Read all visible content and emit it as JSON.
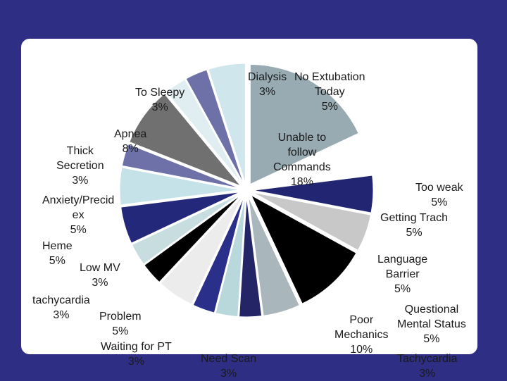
{
  "chart_data": {
    "type": "pie",
    "slices": [
      {
        "label": "Unable to\nfollow\nCommands",
        "value": 18,
        "display": "18%",
        "color": "#98aab2"
      },
      {
        "label": "Too weak",
        "value": 5,
        "display": "5%",
        "color": "#ffffff"
      },
      {
        "label": "Getting Trach",
        "value": 5,
        "display": "5%",
        "color": "#222672"
      },
      {
        "label": "Language\nBarrier",
        "value": 5,
        "display": "5%",
        "color": "#c8c8c8"
      },
      {
        "label": "Poor\nMechanics",
        "value": 10,
        "display": "10%",
        "color": "#000000"
      },
      {
        "label": "Questional\nMental Status",
        "value": 5,
        "display": "5%",
        "color": "#a9b6bb"
      },
      {
        "label": "Tachycardia",
        "value": 3,
        "display": "3%",
        "color": "#232566"
      },
      {
        "label": "Need Scan",
        "value": 3,
        "display": "3%",
        "color": "#b9d8dc"
      },
      {
        "label": "Waiting for PT",
        "value": 3,
        "display": "3%",
        "color": "#2a2f8a"
      },
      {
        "label": "Problem",
        "value": 5,
        "display": "5%",
        "color": "#ececec"
      },
      {
        "label": "tachycardia",
        "value": 3,
        "display": "3%",
        "color": "#000000"
      },
      {
        "label": "Low MV",
        "value": 3,
        "display": "3%",
        "color": "#c8dde0"
      },
      {
        "label": "Heme",
        "value": 5,
        "display": "5%",
        "color": "#23287a"
      },
      {
        "label": "Anxiety/Precid\nex",
        "value": 5,
        "display": "5%",
        "color": "#c5e2e8"
      },
      {
        "label": "Thick\nSecretion",
        "value": 3,
        "display": "3%",
        "color": "#6d71a8"
      },
      {
        "label": "Apnea",
        "value": 8,
        "display": "8%",
        "color": "#707070"
      },
      {
        "label": "To Sleepy",
        "value": 3,
        "display": "3%",
        "color": "#e0eef1"
      },
      {
        "label": "Dialysis",
        "value": 3,
        "display": "3%",
        "color": "#6d71a8"
      },
      {
        "label": "No Extubation\nToday",
        "value": 5,
        "display": "5%",
        "color": "#cfe6ec"
      }
    ]
  }
}
